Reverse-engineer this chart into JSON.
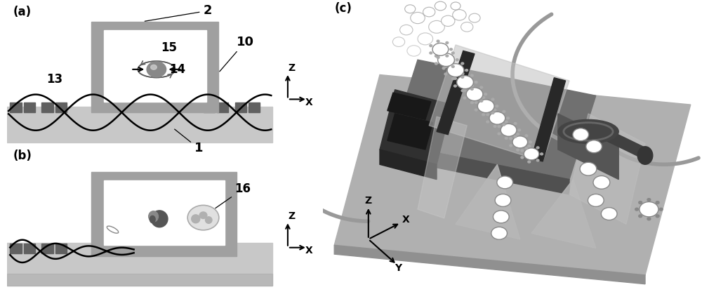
{
  "bg_color": "#ffffff",
  "panel_a_label": "(a)",
  "panel_b_label": "(b)",
  "panel_c_label": "(c)",
  "label_fontsize": 12,
  "annotation_fontsize": 11,
  "gray_lightest": "#e8e8e8",
  "gray_light": "#c8c8c8",
  "gray_medium": "#a0a0a0",
  "gray_dark": "#606060",
  "gray_darker": "#404040",
  "gray_darkest": "#202020",
  "black": "#000000",
  "white": "#ffffff"
}
